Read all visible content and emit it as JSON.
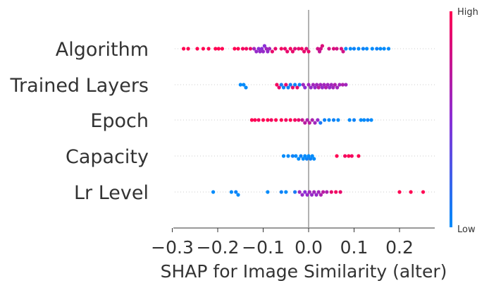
{
  "chart_data": {
    "type": "scatter",
    "subtype": "shap-beeswarm",
    "xlabel": "SHAP for Image Similarity (alter)",
    "xlim": [
      -0.3,
      0.28
    ],
    "xticks": [
      -0.3,
      -0.2,
      -0.1,
      0.0,
      0.1,
      0.2
    ],
    "xtick_labels": [
      "−0.3",
      "−0.2",
      "−0.1",
      "0.0",
      "0.1",
      "0.2"
    ],
    "colorbar": {
      "high_label": "High",
      "low_label": "Low",
      "high_color": "#ff0052",
      "low_color": "#008bfb"
    },
    "zero_line": true,
    "row_gridlines": "dotted",
    "features": [
      {
        "name": "Algorithm",
        "points": [
          {
            "x": -0.275,
            "v": 1.0
          },
          {
            "x": -0.265,
            "v": 1.0
          },
          {
            "x": -0.245,
            "v": 1.0
          },
          {
            "x": -0.232,
            "v": 1.0
          },
          {
            "x": -0.22,
            "v": 1.0
          },
          {
            "x": -0.205,
            "v": 1.0
          },
          {
            "x": -0.198,
            "v": 1.0
          },
          {
            "x": -0.19,
            "v": 1.0
          },
          {
            "x": -0.163,
            "v": 1.0
          },
          {
            "x": -0.155,
            "v": 1.0
          },
          {
            "x": -0.145,
            "v": 0.95
          },
          {
            "x": -0.137,
            "v": 0.95
          },
          {
            "x": -0.128,
            "v": 0.9
          },
          {
            "x": -0.12,
            "v": 0.6
          },
          {
            "x": -0.115,
            "v": 0.55
          },
          {
            "x": -0.11,
            "v": 0.5
          },
          {
            "x": -0.107,
            "v": 0.55
          },
          {
            "x": -0.103,
            "v": 0.5
          },
          {
            "x": -0.1,
            "v": 0.55
          },
          {
            "x": -0.097,
            "v": 0.5
          },
          {
            "x": -0.093,
            "v": 0.6
          },
          {
            "x": -0.09,
            "v": 0.55
          },
          {
            "x": -0.086,
            "v": 0.6
          },
          {
            "x": -0.08,
            "v": 0.9
          },
          {
            "x": -0.073,
            "v": 0.9
          },
          {
            "x": -0.06,
            "v": 0.95
          },
          {
            "x": -0.052,
            "v": 0.9
          },
          {
            "x": -0.047,
            "v": 0.9
          },
          {
            "x": -0.04,
            "v": 0.95
          },
          {
            "x": -0.035,
            "v": 0.9
          },
          {
            "x": -0.03,
            "v": 0.85
          },
          {
            "x": -0.022,
            "v": 0.9
          },
          {
            "x": -0.015,
            "v": 0.95
          },
          {
            "x": -0.01,
            "v": 0.9
          },
          {
            "x": -0.005,
            "v": 0.85
          },
          {
            "x": 0.0,
            "v": 0.9
          },
          {
            "x": 0.02,
            "v": 0.8
          },
          {
            "x": 0.024,
            "v": 0.75
          },
          {
            "x": 0.027,
            "v": 0.8
          },
          {
            "x": 0.03,
            "v": 0.85
          },
          {
            "x": 0.045,
            "v": 0.8
          },
          {
            "x": 0.055,
            "v": 0.85
          },
          {
            "x": 0.062,
            "v": 0.8
          },
          {
            "x": 0.072,
            "v": 0.85
          },
          {
            "x": 0.076,
            "v": 0.8
          },
          {
            "x": 0.082,
            "v": 0.0
          },
          {
            "x": 0.092,
            "v": 0.0
          },
          {
            "x": 0.1,
            "v": 0.05
          },
          {
            "x": 0.11,
            "v": 0.0
          },
          {
            "x": 0.12,
            "v": 0.05
          },
          {
            "x": 0.128,
            "v": 0.0
          },
          {
            "x": 0.14,
            "v": 0.0
          },
          {
            "x": 0.15,
            "v": 0.05
          },
          {
            "x": 0.158,
            "v": 0.0
          },
          {
            "x": 0.166,
            "v": 0.0
          },
          {
            "x": 0.176,
            "v": 0.0
          }
        ]
      },
      {
        "name": "Trained Layers",
        "points": [
          {
            "x": -0.15,
            "v": 0.0
          },
          {
            "x": -0.143,
            "v": 0.0
          },
          {
            "x": -0.138,
            "v": 0.0
          },
          {
            "x": -0.07,
            "v": 0.95
          },
          {
            "x": -0.065,
            "v": 0.9
          },
          {
            "x": -0.06,
            "v": 0.1
          },
          {
            "x": -0.055,
            "v": 0.05
          },
          {
            "x": -0.05,
            "v": 0.9
          },
          {
            "x": -0.045,
            "v": 0.05
          },
          {
            "x": -0.04,
            "v": 0.1
          },
          {
            "x": -0.035,
            "v": 0.9
          },
          {
            "x": -0.03,
            "v": 0.05
          },
          {
            "x": -0.025,
            "v": 0.9
          },
          {
            "x": -0.02,
            "v": 0.05
          },
          {
            "x": -0.012,
            "v": 0.6
          },
          {
            "x": -0.008,
            "v": 0.5
          },
          {
            "x": 0.0,
            "v": 0.6
          },
          {
            "x": 0.005,
            "v": 0.55
          },
          {
            "x": 0.01,
            "v": 0.6
          },
          {
            "x": 0.014,
            "v": 0.55
          },
          {
            "x": 0.018,
            "v": 0.6
          },
          {
            "x": 0.022,
            "v": 0.7
          },
          {
            "x": 0.026,
            "v": 0.6
          },
          {
            "x": 0.03,
            "v": 0.55
          },
          {
            "x": 0.034,
            "v": 0.6
          },
          {
            "x": 0.038,
            "v": 0.65
          },
          {
            "x": 0.042,
            "v": 0.6
          },
          {
            "x": 0.046,
            "v": 0.55
          },
          {
            "x": 0.05,
            "v": 0.6
          },
          {
            "x": 0.054,
            "v": 0.6
          },
          {
            "x": 0.058,
            "v": 0.65
          },
          {
            "x": 0.063,
            "v": 0.6
          },
          {
            "x": 0.068,
            "v": 0.6
          },
          {
            "x": 0.075,
            "v": 0.65
          },
          {
            "x": 0.082,
            "v": 0.6
          }
        ]
      },
      {
        "name": "Epoch",
        "points": [
          {
            "x": -0.125,
            "v": 1.0
          },
          {
            "x": -0.118,
            "v": 1.0
          },
          {
            "x": -0.11,
            "v": 0.95
          },
          {
            "x": -0.1,
            "v": 1.0
          },
          {
            "x": -0.09,
            "v": 1.0
          },
          {
            "x": -0.082,
            "v": 0.95
          },
          {
            "x": -0.072,
            "v": 1.0
          },
          {
            "x": -0.06,
            "v": 1.0
          },
          {
            "x": -0.05,
            "v": 0.95
          },
          {
            "x": -0.04,
            "v": 1.0
          },
          {
            "x": -0.03,
            "v": 0.95
          },
          {
            "x": -0.022,
            "v": 0.9
          },
          {
            "x": -0.014,
            "v": 0.75
          },
          {
            "x": -0.008,
            "v": 0.7
          },
          {
            "x": -0.003,
            "v": 0.65
          },
          {
            "x": 0.002,
            "v": 0.7
          },
          {
            "x": 0.008,
            "v": 0.65
          },
          {
            "x": 0.014,
            "v": 0.6
          },
          {
            "x": 0.02,
            "v": 0.55
          },
          {
            "x": 0.026,
            "v": 0.1
          },
          {
            "x": 0.035,
            "v": 0.05
          },
          {
            "x": 0.045,
            "v": 0.0
          },
          {
            "x": 0.055,
            "v": 0.05
          },
          {
            "x": 0.065,
            "v": 0.0
          },
          {
            "x": 0.09,
            "v": 0.0
          },
          {
            "x": 0.1,
            "v": 0.05
          },
          {
            "x": 0.115,
            "v": 0.0
          },
          {
            "x": 0.122,
            "v": 0.0
          },
          {
            "x": 0.13,
            "v": 0.05
          },
          {
            "x": 0.138,
            "v": 0.0
          }
        ]
      },
      {
        "name": "Capacity",
        "points": [
          {
            "x": -0.055,
            "v": 0.0
          },
          {
            "x": -0.045,
            "v": 0.0
          },
          {
            "x": -0.035,
            "v": 0.05
          },
          {
            "x": -0.028,
            "v": 0.0
          },
          {
            "x": -0.022,
            "v": 0.0
          },
          {
            "x": -0.017,
            "v": 0.05
          },
          {
            "x": -0.012,
            "v": 0.0
          },
          {
            "x": -0.008,
            "v": 0.0
          },
          {
            "x": -0.004,
            "v": 0.05
          },
          {
            "x": 0.0,
            "v": 0.0
          },
          {
            "x": 0.004,
            "v": 0.05
          },
          {
            "x": 0.008,
            "v": 0.0
          },
          {
            "x": 0.012,
            "v": 0.0
          },
          {
            "x": 0.062,
            "v": 1.0
          },
          {
            "x": 0.08,
            "v": 0.95
          },
          {
            "x": 0.088,
            "v": 1.0
          },
          {
            "x": 0.095,
            "v": 0.95
          },
          {
            "x": 0.11,
            "v": 1.0
          }
        ]
      },
      {
        "name": "Lr Level",
        "points": [
          {
            "x": -0.21,
            "v": 0.0
          },
          {
            "x": -0.17,
            "v": 0.0
          },
          {
            "x": -0.16,
            "v": 0.05
          },
          {
            "x": -0.155,
            "v": 0.0
          },
          {
            "x": -0.09,
            "v": 0.0
          },
          {
            "x": -0.06,
            "v": 0.05
          },
          {
            "x": -0.05,
            "v": 0.0
          },
          {
            "x": -0.03,
            "v": 0.1
          },
          {
            "x": -0.02,
            "v": 0.6
          },
          {
            "x": -0.014,
            "v": 0.55
          },
          {
            "x": -0.008,
            "v": 0.5
          },
          {
            "x": -0.003,
            "v": 0.55
          },
          {
            "x": 0.002,
            "v": 0.6
          },
          {
            "x": 0.007,
            "v": 0.55
          },
          {
            "x": 0.012,
            "v": 0.6
          },
          {
            "x": 0.017,
            "v": 0.55
          },
          {
            "x": 0.022,
            "v": 0.6
          },
          {
            "x": 0.027,
            "v": 0.65
          },
          {
            "x": 0.032,
            "v": 0.7
          },
          {
            "x": 0.04,
            "v": 0.65
          },
          {
            "x": 0.05,
            "v": 0.9
          },
          {
            "x": 0.06,
            "v": 0.95
          },
          {
            "x": 0.07,
            "v": 0.9
          },
          {
            "x": 0.2,
            "v": 1.0
          },
          {
            "x": 0.225,
            "v": 1.0
          },
          {
            "x": 0.252,
            "v": 1.0
          }
        ]
      }
    ]
  }
}
